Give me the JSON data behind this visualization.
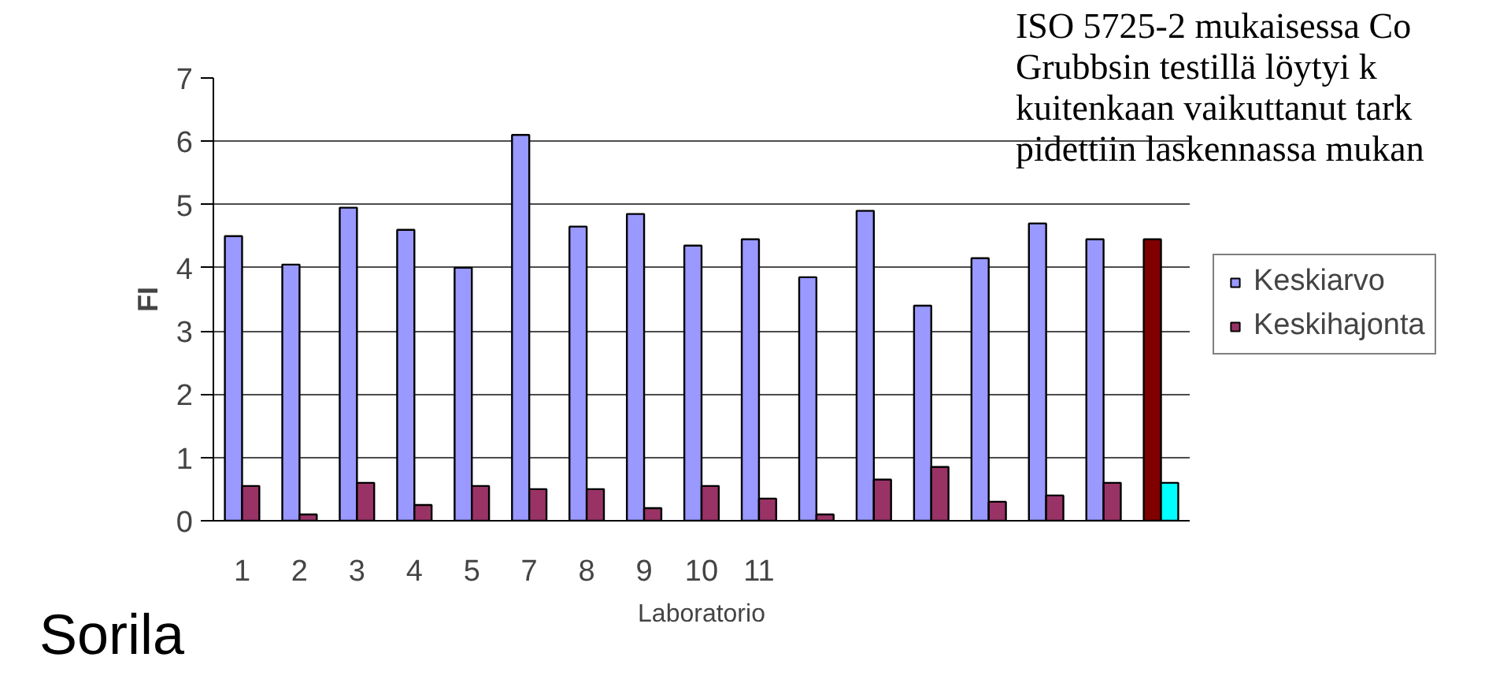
{
  "chart_data": {
    "type": "bar",
    "xlabel": "Laboratorio",
    "ylabel": "FI",
    "categories": [
      "1",
      "2",
      "3",
      "4",
      "5",
      "7",
      "8",
      "9",
      "10",
      "11",
      null,
      null,
      null,
      null,
      null,
      null,
      null
    ],
    "series": [
      {
        "name": "Keskiarvo",
        "color": "#9999ff",
        "colors": [
          "#9999ff",
          "#9999ff",
          "#9999ff",
          "#9999ff",
          "#9999ff",
          "#9999ff",
          "#9999ff",
          "#9999ff",
          "#9999ff",
          "#9999ff",
          "#9999ff",
          "#9999ff",
          "#9999ff",
          "#9999ff",
          "#9999ff",
          "#9999ff",
          "#800000"
        ],
        "values": [
          4.5,
          4.05,
          4.95,
          4.6,
          4.0,
          6.1,
          4.65,
          4.85,
          4.35,
          4.45,
          3.85,
          4.9,
          3.4,
          4.15,
          4.7,
          4.45,
          4.45
        ]
      },
      {
        "name": "Keskihajonta",
        "color": "#993366",
        "colors": [
          "#993366",
          "#993366",
          "#993366",
          "#993366",
          "#993366",
          "#993366",
          "#993366",
          "#993366",
          "#993366",
          "#993366",
          "#993366",
          "#993366",
          "#993366",
          "#993366",
          "#993366",
          "#993366",
          "#00ffff"
        ],
        "values": [
          0.55,
          0.1,
          0.6,
          0.25,
          0.55,
          0.5,
          0.5,
          0.2,
          0.55,
          0.35,
          0.1,
          0.65,
          0.85,
          0.3,
          0.4,
          0.6,
          0.6
        ]
      }
    ],
    "ylim": [
      0,
      7
    ],
    "yticks": [
      0,
      1,
      2,
      3,
      4,
      5,
      6,
      7
    ],
    "grid": "y",
    "legend": "right",
    "annotations": [
      "Sorila",
      "ISO 5725-2 mukaisessa Co",
      "Grubbsin testillä löytyi k",
      "kuitenkaan vaikuttanut tark",
      "pidettiin laskennassa mukan"
    ]
  }
}
